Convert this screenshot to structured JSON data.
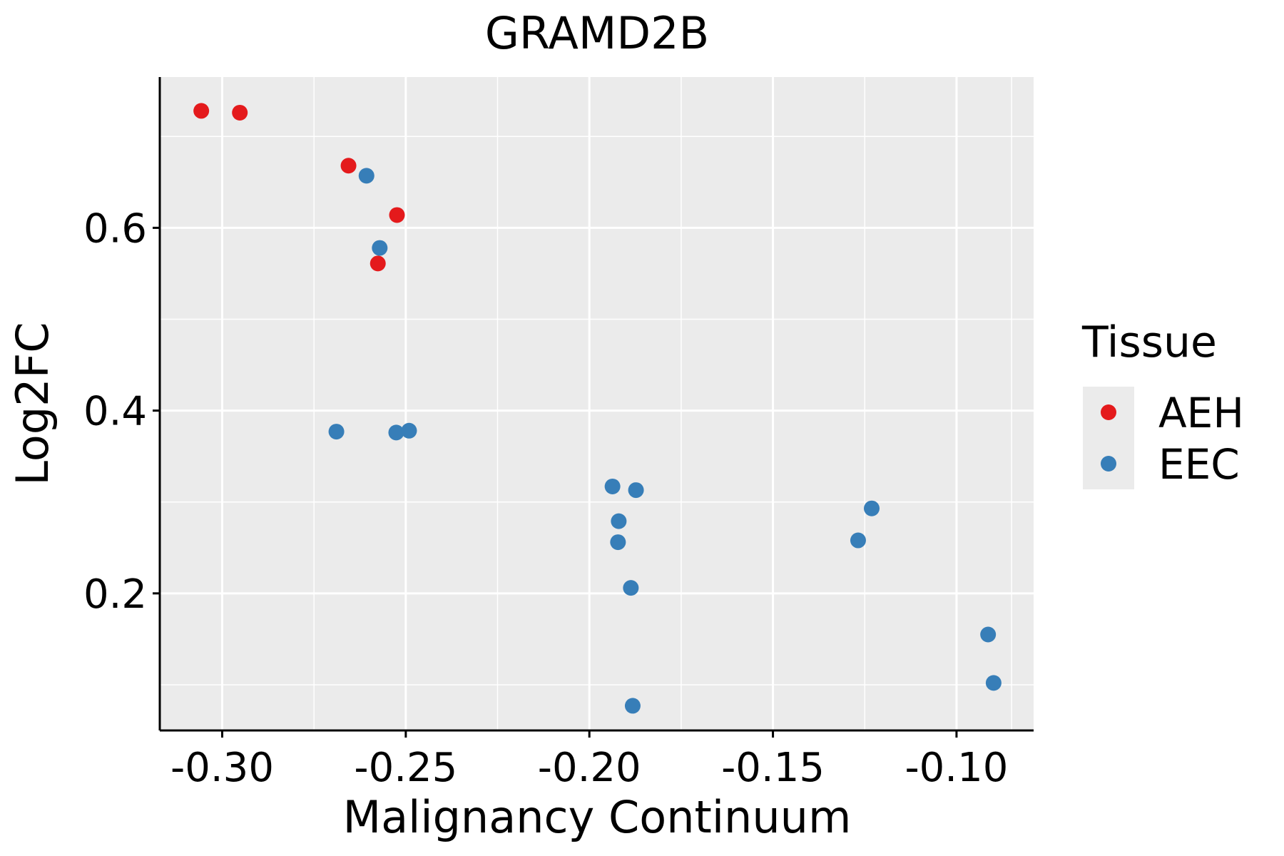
{
  "chart_data": {
    "type": "scatter",
    "title": "GRAMD2B",
    "xlabel": "Malignancy Continuum",
    "ylabel": "Log2FC",
    "xlim": [
      -0.317,
      -0.079
    ],
    "ylim": [
      0.05,
      0.765
    ],
    "xticks": [
      {
        "value": -0.3,
        "label": "-0.30"
      },
      {
        "value": -0.25,
        "label": "-0.25"
      },
      {
        "value": -0.2,
        "label": "-0.20"
      },
      {
        "value": -0.15,
        "label": "-0.15"
      },
      {
        "value": -0.1,
        "label": "-0.10"
      }
    ],
    "yticks": [
      {
        "value": 0.2,
        "label": "0.2"
      },
      {
        "value": 0.4,
        "label": "0.4"
      },
      {
        "value": 0.6,
        "label": "0.6"
      }
    ],
    "xminor": [
      -0.275,
      -0.225,
      -0.175,
      -0.125,
      -0.085
    ],
    "yminor": [
      0.1,
      0.3,
      0.5,
      0.7
    ],
    "grid": true,
    "legend": {
      "title": "Tissue",
      "position": "right",
      "entries": [
        {
          "name": "AEH",
          "color": "#E41A1C"
        },
        {
          "name": "EEC",
          "color": "#377EB8"
        }
      ]
    },
    "series": [
      {
        "name": "AEH",
        "color": "#E41A1C",
        "points": [
          {
            "x": -0.3057,
            "y": 0.728
          },
          {
            "x": -0.2952,
            "y": 0.726
          },
          {
            "x": -0.2656,
            "y": 0.668
          },
          {
            "x": -0.2524,
            "y": 0.614
          },
          {
            "x": -0.2576,
            "y": 0.561
          }
        ]
      },
      {
        "name": "EEC",
        "color": "#377EB8",
        "points": [
          {
            "x": -0.2607,
            "y": 0.657
          },
          {
            "x": -0.2571,
            "y": 0.578
          },
          {
            "x": -0.2689,
            "y": 0.377
          },
          {
            "x": -0.2526,
            "y": 0.376
          },
          {
            "x": -0.2491,
            "y": 0.378
          },
          {
            "x": -0.1937,
            "y": 0.317
          },
          {
            "x": -0.1873,
            "y": 0.313
          },
          {
            "x": -0.192,
            "y": 0.279
          },
          {
            "x": -0.1922,
            "y": 0.256
          },
          {
            "x": -0.1887,
            "y": 0.206
          },
          {
            "x": -0.1882,
            "y": 0.077
          },
          {
            "x": -0.1268,
            "y": 0.258
          },
          {
            "x": -0.1231,
            "y": 0.293
          },
          {
            "x": -0.0914,
            "y": 0.155
          },
          {
            "x": -0.0899,
            "y": 0.102
          }
        ]
      }
    ]
  }
}
